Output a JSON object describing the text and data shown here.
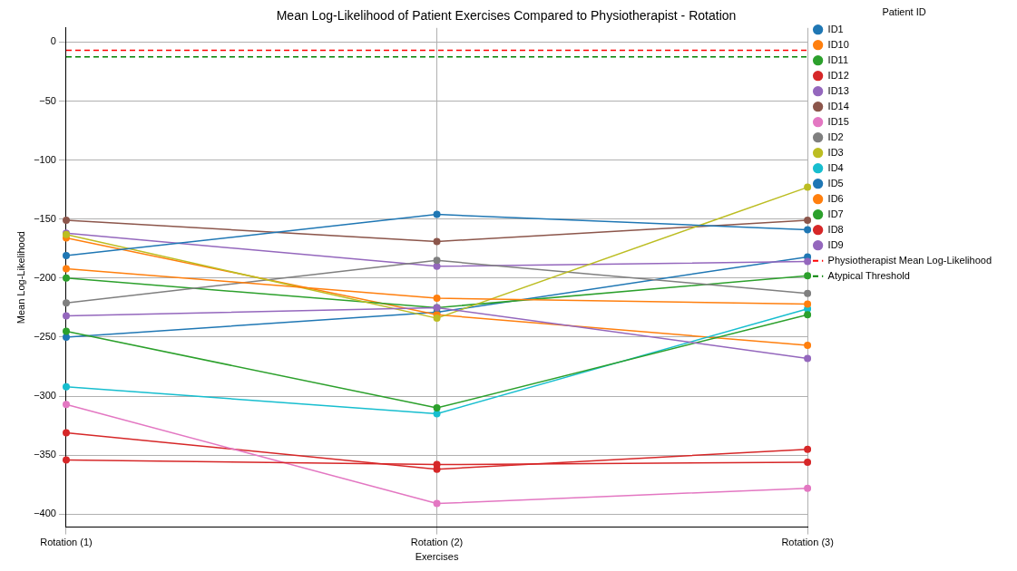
{
  "chart_data": {
    "type": "line",
    "title": "Mean Log-Likelihood of Patient Exercises Compared to Physiotherapist - Rotation",
    "xlabel": "Exercises",
    "ylabel": "Mean Log-Likelihood",
    "legend_title": "Patient ID",
    "categories": [
      "Rotation (1)",
      "Rotation (2)",
      "Rotation (3)"
    ],
    "series": [
      {
        "name": "ID1",
        "color": "#1f77b4",
        "values": [
          -250,
          -229,
          -182
        ]
      },
      {
        "name": "ID10",
        "color": "#ff7f0e",
        "values": [
          -166,
          -231,
          -257
        ]
      },
      {
        "name": "ID11",
        "color": "#2ca02c",
        "values": [
          -200,
          -225,
          -198
        ]
      },
      {
        "name": "ID12",
        "color": "#d62728",
        "values": [
          -331,
          -362,
          -345
        ]
      },
      {
        "name": "ID13",
        "color": "#9467bd",
        "values": [
          -162,
          -190,
          -186
        ]
      },
      {
        "name": "ID14",
        "color": "#8c564b",
        "values": [
          -151,
          -169,
          -151
        ]
      },
      {
        "name": "ID15",
        "color": "#e377c2",
        "values": [
          -307,
          -391,
          -378
        ]
      },
      {
        "name": "ID2",
        "color": "#7f7f7f",
        "values": [
          -221,
          -185,
          -213
        ]
      },
      {
        "name": "ID3",
        "color": "#bcbd22",
        "values": [
          -163,
          -234,
          -123
        ]
      },
      {
        "name": "ID4",
        "color": "#17becf",
        "values": [
          -292,
          -315,
          -226
        ]
      },
      {
        "name": "ID5",
        "color": "#1f77b4",
        "values": [
          -181,
          -146,
          -159
        ]
      },
      {
        "name": "ID6",
        "color": "#ff7f0e",
        "values": [
          -192,
          -217,
          -222
        ]
      },
      {
        "name": "ID7",
        "color": "#2ca02c",
        "values": [
          -245,
          -310,
          -231
        ]
      },
      {
        "name": "ID8",
        "color": "#d62728",
        "values": [
          -354,
          -358,
          -356
        ]
      },
      {
        "name": "ID9",
        "color": "#9467bd",
        "values": [
          -232,
          -225,
          -268
        ]
      }
    ],
    "ref_lines": [
      {
        "axis": "y",
        "value": -7,
        "label": "Physiotherapist Mean Log-Likelihood",
        "color": "#ff0000",
        "line_style": "dashed"
      },
      {
        "axis": "y",
        "value": -12.5,
        "label": "Atypical Threshold",
        "color": "#008000",
        "line_style": "dashed"
      }
    ],
    "ylim": [
      -411,
      12
    ],
    "yticks": [
      0,
      -50,
      -100,
      -150,
      -200,
      -250,
      -300,
      -350,
      -400
    ],
    "grid": true,
    "legend": "right",
    "marker": "circle",
    "line_style": "solid"
  }
}
